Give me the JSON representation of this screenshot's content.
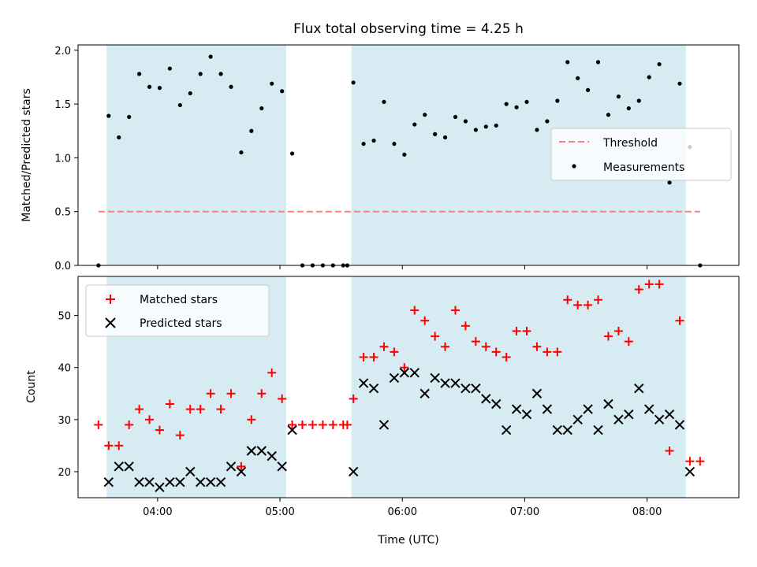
{
  "chart_data": [
    {
      "type": "scatter",
      "title": "Flux total observing time = 4.25 h",
      "xlabel": "",
      "ylabel": "Matched/Predicted stars",
      "xlim": [
        "03:21",
        "08:45"
      ],
      "ylim": [
        0,
        2.05
      ],
      "yticks": [
        "0.0",
        "0.5",
        "1.0",
        "1.5",
        "2.0"
      ],
      "grid": false,
      "legend": "center-right",
      "shaded_intervals": [
        [
          "03:35",
          "05:03"
        ],
        [
          "05:35",
          "08:19"
        ]
      ],
      "threshold": {
        "name": "Threshold",
        "value": 0.5,
        "x": [
          "03:31",
          "08:26"
        ],
        "color": "#ff7f7f"
      },
      "series": [
        {
          "name": "Measurements",
          "color": "#000000",
          "x": [
            "03:31",
            "03:36",
            "03:41",
            "03:46",
            "03:51",
            "03:56",
            "04:01",
            "04:06",
            "04:11",
            "04:16",
            "04:21",
            "04:26",
            "04:31",
            "04:36",
            "04:41",
            "04:46",
            "04:51",
            "04:56",
            "05:01",
            "05:06",
            "05:11",
            "05:16",
            "05:21",
            "05:26",
            "05:31",
            "05:33",
            "05:36",
            "05:41",
            "05:46",
            "05:51",
            "05:56",
            "06:01",
            "06:06",
            "06:11",
            "06:16",
            "06:21",
            "06:26",
            "06:31",
            "06:36",
            "06:41",
            "06:46",
            "06:51",
            "06:56",
            "07:01",
            "07:06",
            "07:11",
            "07:16",
            "07:21",
            "07:26",
            "07:31",
            "07:36",
            "07:41",
            "07:46",
            "07:51",
            "07:56",
            "08:01",
            "08:06",
            "08:11",
            "08:16",
            "08:21",
            "08:26"
          ],
          "y": [
            0.0,
            1.39,
            1.19,
            1.38,
            1.78,
            1.66,
            1.65,
            1.83,
            1.49,
            1.6,
            1.78,
            1.94,
            1.78,
            1.66,
            1.05,
            1.25,
            1.46,
            1.69,
            1.62,
            1.04,
            0.0,
            0.0,
            0.0,
            0.0,
            0.0,
            0.0,
            1.7,
            1.13,
            1.16,
            1.52,
            1.13,
            1.03,
            1.31,
            1.4,
            1.22,
            1.19,
            1.38,
            1.34,
            1.26,
            1.29,
            1.3,
            1.5,
            1.47,
            1.52,
            1.26,
            1.34,
            1.53,
            1.89,
            1.74,
            1.63,
            1.89,
            1.4,
            1.57,
            1.46,
            1.53,
            1.75,
            1.87,
            0.77,
            1.69,
            1.1,
            0.0
          ]
        }
      ]
    },
    {
      "type": "scatter",
      "title": "",
      "xlabel": "Time (UTC)",
      "ylabel": "Count",
      "xlim": [
        "03:21",
        "08:45"
      ],
      "ylim": [
        15,
        57.5
      ],
      "xticks": [
        "04:00",
        "05:00",
        "06:00",
        "07:00",
        "08:00"
      ],
      "yticks": [
        "20",
        "30",
        "40",
        "50"
      ],
      "grid": false,
      "legend": "upper-left",
      "shaded_intervals": [
        [
          "03:35",
          "05:03"
        ],
        [
          "05:35",
          "08:19"
        ]
      ],
      "series": [
        {
          "name": "Matched stars",
          "marker": "+",
          "color": "#ff0000",
          "x": [
            "03:31",
            "03:36",
            "03:41",
            "03:46",
            "03:51",
            "03:56",
            "04:01",
            "04:06",
            "04:11",
            "04:16",
            "04:21",
            "04:26",
            "04:31",
            "04:36",
            "04:41",
            "04:46",
            "04:51",
            "04:56",
            "05:01",
            "05:06",
            "05:11",
            "05:16",
            "05:21",
            "05:26",
            "05:31",
            "05:33",
            "05:36",
            "05:41",
            "05:46",
            "05:51",
            "05:56",
            "06:01",
            "06:06",
            "06:11",
            "06:16",
            "06:21",
            "06:26",
            "06:31",
            "06:36",
            "06:41",
            "06:46",
            "06:51",
            "06:56",
            "07:01",
            "07:06",
            "07:11",
            "07:16",
            "07:21",
            "07:26",
            "07:31",
            "07:36",
            "07:41",
            "07:46",
            "07:51",
            "07:56",
            "08:01",
            "08:06",
            "08:11",
            "08:16",
            "08:21",
            "08:26"
          ],
          "y": [
            29,
            25,
            25,
            29,
            32,
            30,
            28,
            33,
            27,
            32,
            32,
            35,
            32,
            35,
            21,
            30,
            35,
            39,
            34,
            29,
            29,
            29,
            29,
            29,
            29,
            29,
            34,
            42,
            42,
            44,
            43,
            40,
            51,
            49,
            46,
            44,
            51,
            48,
            45,
            44,
            43,
            42,
            47,
            47,
            44,
            43,
            43,
            53,
            52,
            52,
            53,
            46,
            47,
            45,
            55,
            56,
            56,
            24,
            49,
            22,
            22
          ]
        },
        {
          "name": "Predicted stars",
          "marker": "x",
          "color": "#000000",
          "x": [
            "03:36",
            "03:41",
            "03:46",
            "03:51",
            "03:56",
            "04:01",
            "04:06",
            "04:11",
            "04:16",
            "04:21",
            "04:26",
            "04:31",
            "04:36",
            "04:41",
            "04:46",
            "04:51",
            "04:56",
            "05:01",
            "05:06",
            "05:36",
            "05:41",
            "05:46",
            "05:51",
            "05:56",
            "06:01",
            "06:06",
            "06:11",
            "06:16",
            "06:21",
            "06:26",
            "06:31",
            "06:36",
            "06:41",
            "06:46",
            "06:51",
            "06:56",
            "07:01",
            "07:06",
            "07:11",
            "07:16",
            "07:21",
            "07:26",
            "07:31",
            "07:36",
            "07:41",
            "07:46",
            "07:51",
            "07:56",
            "08:01",
            "08:06",
            "08:11",
            "08:16",
            "08:21"
          ],
          "y": [
            18,
            21,
            21,
            18,
            18,
            17,
            18,
            18,
            20,
            18,
            18,
            18,
            21,
            20,
            24,
            24,
            23,
            21,
            28,
            20,
            37,
            36,
            29,
            38,
            39,
            39,
            35,
            38,
            37,
            37,
            36,
            36,
            34,
            33,
            28,
            32,
            31,
            35,
            32,
            28,
            28,
            30,
            32,
            28,
            33,
            30,
            31,
            36,
            32,
            30,
            31,
            29,
            20
          ]
        }
      ]
    }
  ],
  "colors": {
    "shade": "#add8e6",
    "matched": "#ff0000",
    "predicted": "#000000",
    "measurements": "#000000",
    "threshold": "#ff7f7f"
  }
}
